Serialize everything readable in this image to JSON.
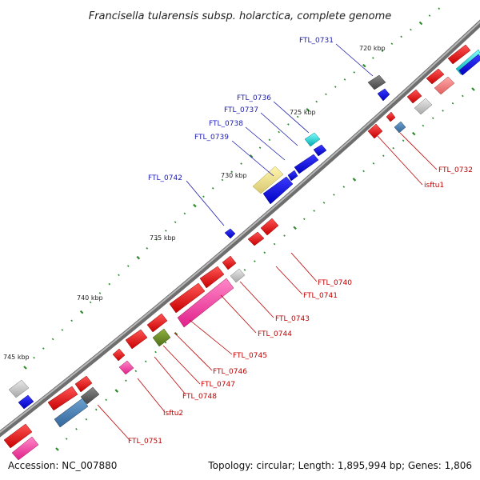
{
  "title": "Francisella tularensis subsp. holarctica, complete genome",
  "footer": {
    "accession": "Accession: NC_007880",
    "summary": "Topology: circular; Length: 1,895,994 bp; Genes: 1,806"
  },
  "scale_labels": [
    "720 kbp",
    "725 kbp",
    "730 kbp",
    "735 kbp",
    "740 kbp",
    "745 kbp"
  ],
  "gene_labels_outer": [
    "FTL_0731",
    "FTL_0736",
    "FTL_0737",
    "FTL_0738",
    "FTL_0739",
    "FTL_0742"
  ],
  "gene_labels_inner": [
    "FTL_0732",
    "isftu1",
    "FTL_0740",
    "FTL_0741",
    "FTL_0743",
    "FTL_0744",
    "FTL_0745",
    "FTL_0746",
    "FTL_0747",
    "FTL_0748",
    "isftu2",
    "FTL_0751"
  ],
  "colors": {
    "backbone": "#808080",
    "cds_red": "#ff0000",
    "cds_blue": "#0000ff",
    "steel_blue": "#4682b4",
    "cyan": "#00e5ee",
    "khaki": "#f0e68c",
    "pink": "#ff69b4",
    "light_red": "#ff8080",
    "olive": "#6b8e23",
    "dark_gray": "#555555",
    "light_gray": "#c8c8c8",
    "outer_label": "#1a1ab0",
    "inner_label": "#c00000",
    "tick": "#2e8b2e"
  }
}
